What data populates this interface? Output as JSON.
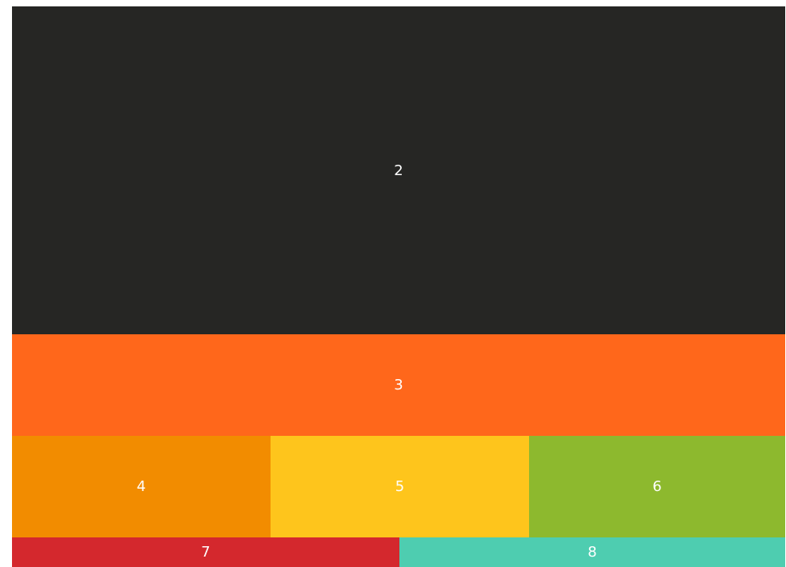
{
  "blocks": [
    {
      "label": "2",
      "color": "#262624"
    },
    {
      "label": "3",
      "color": "#ff671b"
    },
    {
      "label": "4",
      "color": "#f28c00"
    },
    {
      "label": "5",
      "color": "#fec51c"
    },
    {
      "label": "6",
      "color": "#8db92e"
    },
    {
      "label": "7",
      "color": "#d4282d"
    },
    {
      "label": "8",
      "color": "#4ecdb0"
    }
  ]
}
